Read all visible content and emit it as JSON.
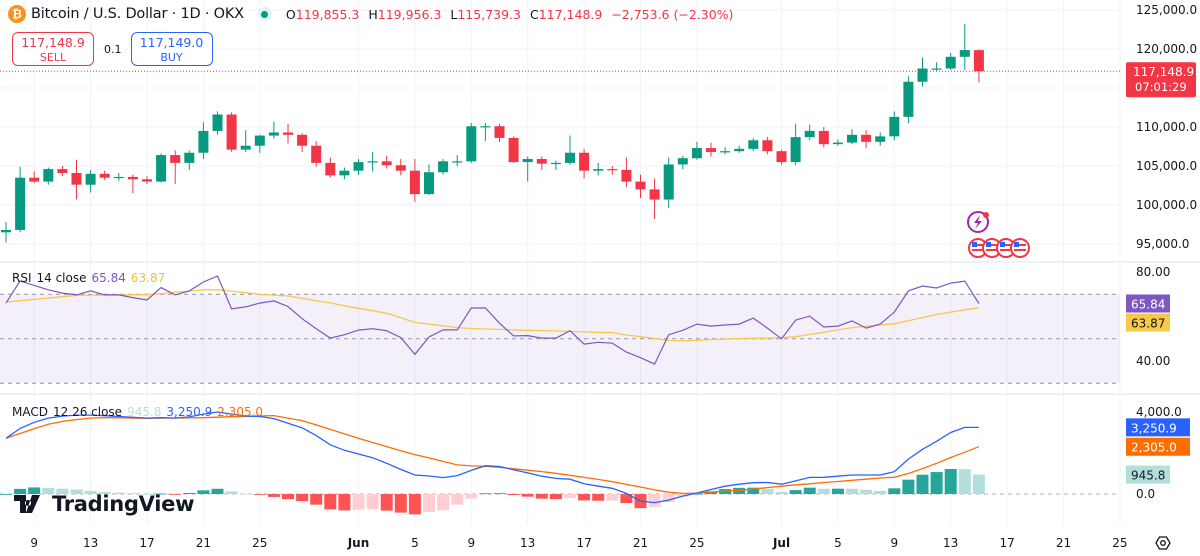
{
  "header": {
    "symbol_icon": "bitcoin-icon",
    "title": "Bitcoin / U.S. Dollar · 1D · OKX",
    "market_status": "market-open-dot",
    "ohlc": {
      "o_label": "O",
      "o": "119,855.3",
      "h_label": "H",
      "h": "119,956.3",
      "l_label": "L",
      "l": "115,739.3",
      "c_label": "C",
      "c": "117,148.9",
      "change": "−2,753.6 (−2.30%)"
    }
  },
  "trade": {
    "sell_price": "117,148.9",
    "sell_label": "SELL",
    "quantity": "0.1",
    "buy_price": "117,149.0",
    "buy_label": "BUY"
  },
  "colors": {
    "up": "#089981",
    "down": "#f23645",
    "rsi": "#7e57c2",
    "rsi_ma": "#f7c948",
    "macd": "#2962ff",
    "signal": "#ff6d00",
    "hist_up_strong": "#26a69a",
    "hist_up_weak": "#b2dfdb",
    "hist_down_strong": "#ff5252",
    "hist_down_weak": "#ffcdd2"
  },
  "price_axis": {
    "ticks": [
      "125,000.0",
      "120,000.0",
      "110,000.0",
      "105,000.0",
      "100,000.0",
      "95,000.0"
    ],
    "tick_values": [
      125000,
      120000,
      110000,
      105000,
      100000,
      95000
    ],
    "range": [
      95000,
      125000
    ],
    "last_price_label": "117,148.9",
    "countdown": "07:01:29",
    "last_price": 117148.9
  },
  "time_axis": {
    "labels": [
      {
        "t": "9",
        "bold": false
      },
      {
        "t": "13",
        "bold": false
      },
      {
        "t": "17",
        "bold": false
      },
      {
        "t": "21",
        "bold": false
      },
      {
        "t": "25",
        "bold": false
      },
      {
        "t": "Jun",
        "bold": true
      },
      {
        "t": "5",
        "bold": false
      },
      {
        "t": "9",
        "bold": false
      },
      {
        "t": "13",
        "bold": false
      },
      {
        "t": "17",
        "bold": false
      },
      {
        "t": "21",
        "bold": false
      },
      {
        "t": "25",
        "bold": false
      },
      {
        "t": "Jul",
        "bold": true
      },
      {
        "t": "5",
        "bold": false
      },
      {
        "t": "9",
        "bold": false
      },
      {
        "t": "13",
        "bold": false
      },
      {
        "t": "17",
        "bold": false
      },
      {
        "t": "21",
        "bold": false
      },
      {
        "t": "25",
        "bold": false
      }
    ],
    "label_dates": [
      "2025-05-09",
      "2025-05-13",
      "2025-05-17",
      "2025-05-21",
      "2025-05-25",
      "2025-06-01",
      "2025-06-05",
      "2025-06-09",
      "2025-06-13",
      "2025-06-17",
      "2025-06-21",
      "2025-06-25",
      "2025-07-01",
      "2025-07-05",
      "2025-07-09",
      "2025-07-13",
      "2025-07-17",
      "2025-07-21",
      "2025-07-25"
    ],
    "first_date": "2025-05-07",
    "settings_icon": "gear-icon"
  },
  "candles": [
    [
      96500,
      97800,
      95200,
      96800
    ],
    [
      96800,
      104900,
      96500,
      103500
    ],
    [
      103500,
      104300,
      102800,
      103000
    ],
    [
      103000,
      104800,
      102600,
      104600
    ],
    [
      104600,
      105000,
      103700,
      104100
    ],
    [
      104100,
      105800,
      100700,
      102600
    ],
    [
      102600,
      104500,
      101600,
      104000
    ],
    [
      104000,
      104400,
      103200,
      103500
    ],
    [
      103500,
      104100,
      103100,
      103600
    ],
    [
      103600,
      103900,
      101500,
      103300
    ],
    [
      103300,
      103700,
      102700,
      103000
    ],
    [
      103000,
      106600,
      102900,
      106400
    ],
    [
      106400,
      107000,
      102700,
      105400
    ],
    [
      105400,
      107000,
      104500,
      106700
    ],
    [
      106700,
      110600,
      105900,
      109500
    ],
    [
      109500,
      112000,
      109000,
      111600
    ],
    [
      111600,
      111900,
      106800,
      107100
    ],
    [
      107100,
      109600,
      106800,
      107600
    ],
    [
      107600,
      109000,
      106700,
      108900
    ],
    [
      108900,
      110700,
      108500,
      109300
    ],
    [
      109300,
      110400,
      107900,
      109000
    ],
    [
      109000,
      109200,
      106800,
      107600
    ],
    [
      107600,
      108200,
      104900,
      105400
    ],
    [
      105400,
      106100,
      103500,
      103800
    ],
    [
      103800,
      104800,
      103300,
      104400
    ],
    [
      104400,
      105900,
      103900,
      105500
    ],
    [
      105500,
      106800,
      104300,
      105600
    ],
    [
      105600,
      106300,
      104700,
      105100
    ],
    [
      105100,
      105900,
      103800,
      104400
    ],
    [
      104400,
      105900,
      100400,
      101400
    ],
    [
      101400,
      105200,
      101300,
      104200
    ],
    [
      104200,
      105900,
      103900,
      105600
    ],
    [
      105600,
      106400,
      105000,
      105600
    ],
    [
      105600,
      110500,
      105400,
      110100
    ],
    [
      110100,
      110500,
      108200,
      110100
    ],
    [
      110100,
      110400,
      108100,
      108600
    ],
    [
      108600,
      108800,
      105400,
      105500
    ],
    [
      105500,
      106200,
      103000,
      105900
    ],
    [
      105900,
      106200,
      104500,
      105300
    ],
    [
      105300,
      105700,
      104500,
      105400
    ],
    [
      105400,
      108900,
      105200,
      106700
    ],
    [
      106700,
      107200,
      103400,
      104400
    ],
    [
      104400,
      105400,
      103800,
      104600
    ],
    [
      104600,
      105000,
      103900,
      104500
    ],
    [
      104500,
      106100,
      102300,
      103000
    ],
    [
      103000,
      103900,
      100900,
      102000
    ],
    [
      102000,
      103400,
      98200,
      100700
    ],
    [
      100700,
      106100,
      99600,
      105200
    ],
    [
      105200,
      106300,
      104600,
      106000
    ],
    [
      106000,
      108100,
      105800,
      107300
    ],
    [
      107300,
      108000,
      106200,
      106800
    ],
    [
      106800,
      107400,
      106500,
      106900
    ],
    [
      106900,
      107600,
      106700,
      107200
    ],
    [
      107200,
      108600,
      106900,
      108300
    ],
    [
      108300,
      108700,
      106500,
      106900
    ],
    [
      106900,
      107100,
      105200,
      105500
    ],
    [
      105500,
      110400,
      105100,
      108700
    ],
    [
      108700,
      110300,
      108300,
      109500
    ],
    [
      109500,
      110000,
      107400,
      107800
    ],
    [
      107800,
      108400,
      107600,
      108000
    ],
    [
      108000,
      109700,
      107800,
      109000
    ],
    [
      109000,
      109600,
      107300,
      108100
    ],
    [
      108100,
      109300,
      107600,
      108800
    ],
    [
      108800,
      112000,
      108300,
      111300
    ],
    [
      111300,
      116500,
      110500,
      115800
    ],
    [
      115800,
      118900,
      115200,
      117500
    ],
    [
      117500,
      118300,
      117200,
      117500
    ],
    [
      117500,
      119500,
      117300,
      119000
    ],
    [
      119000,
      123200,
      117300,
      119860
    ],
    [
      119855.3,
      119956.3,
      115739.3,
      117148.9
    ]
  ],
  "rsi": {
    "legend_name": "RSI",
    "legend_params": "14 close",
    "value_label": "65.84",
    "ma_label": "63.87",
    "ticks": [
      "80.00",
      "40.00"
    ],
    "tick_values": [
      80,
      40
    ],
    "bands": [
      70,
      50,
      30
    ],
    "range": [
      25,
      85
    ],
    "values": [
      66,
      76,
      74,
      72,
      70.5,
      69.7,
      71.5,
      69.7,
      69.7,
      68.5,
      67.4,
      73,
      69.7,
      71.5,
      75.5,
      78.2,
      63.4,
      64.3,
      66,
      67,
      64.5,
      59,
      54.5,
      50.3,
      51.8,
      53.9,
      54.5,
      53.6,
      50.5,
      43,
      50.8,
      54,
      54,
      63.8,
      63.8,
      57,
      51.3,
      51.4,
      50.3,
      50.3,
      53.6,
      47.6,
      48.4,
      48,
      44,
      41.5,
      38.6,
      51.8,
      53.8,
      56.6,
      55.7,
      56.2,
      56.6,
      59.3,
      54.8,
      50,
      58.4,
      60.2,
      55.3,
      55.7,
      58,
      54.8,
      56.6,
      62,
      71.5,
      73.7,
      72.8,
      75,
      75.9,
      65.84
    ],
    "ma": [
      66.5,
      67.1,
      67.7,
      68.3,
      68.9,
      69.5,
      69.6,
      69.6,
      69.7,
      69.8,
      69.8,
      70.3,
      70.9,
      71.4,
      72,
      72,
      71.4,
      70.7,
      70,
      69.6,
      69.2,
      68.2,
      67,
      66.1,
      64.8,
      63.7,
      62.6,
      61.5,
      59.4,
      57.3,
      56.6,
      55.8,
      55,
      54.6,
      54.4,
      54.2,
      54,
      53.8,
      53.7,
      53.5,
      53.3,
      53.1,
      52.9,
      52.8,
      51.7,
      50.9,
      50.1,
      49.2,
      49.1,
      49.3,
      49.6,
      49.8,
      50.1,
      50.2,
      50.3,
      50.5,
      50.9,
      51.9,
      52.9,
      54,
      55,
      55.6,
      56.2,
      56.7,
      58.1,
      59.5,
      60.9,
      62,
      63,
      63.87
    ]
  },
  "macd": {
    "legend_name": "MACD",
    "legend_params": "12 26 close",
    "hist_label": "945.8",
    "macd_label": "3,250.9",
    "signal_label": "2,305.0",
    "ticks": [
      "4,000.0",
      "0.0"
    ],
    "tick_values": [
      4000,
      0
    ],
    "range": [
      -1600,
      4400
    ],
    "macd": [
      2716,
      3200,
      3500,
      3700,
      3800,
      3850,
      3850,
      3820,
      3780,
      3740,
      3700,
      3720,
      3700,
      3760,
      3900,
      4000,
      3900,
      3800,
      3780,
      3680,
      3450,
      3230,
      2850,
      2400,
      2130,
      1950,
      1770,
      1500,
      1200,
      927,
      880,
      800,
      900,
      1150,
      1380,
      1340,
      1180,
      1030,
      870,
      760,
      720,
      500,
      380,
      280,
      30,
      -350,
      -420,
      -300,
      -100,
      50,
      220,
      380,
      480,
      550,
      560,
      480,
      640,
      810,
      813,
      870,
      927,
      927,
      927,
      1090,
      1700,
      2180,
      2570,
      3000,
      3250,
      3250.9
    ],
    "signal": [
      2716,
      2950,
      3180,
      3400,
      3540,
      3630,
      3700,
      3725,
      3715,
      3700,
      3692,
      3700,
      3705,
      3712,
      3720,
      3745,
      3770,
      3790,
      3810,
      3823,
      3700,
      3580,
      3370,
      3150,
      2930,
      2716,
      2510,
      2310,
      2110,
      1920,
      1760,
      1590,
      1420,
      1370,
      1345,
      1300,
      1230,
      1160,
      1095,
      1010,
      910,
      810,
      710,
      602,
      470,
      340,
      200,
      90,
      30,
      40,
      90,
      140,
      180,
      240,
      310,
      380,
      450,
      500,
      560,
      610,
      670,
      720,
      780,
      813,
      1000,
      1240,
      1500,
      1780,
      2040,
      2305
    ]
  },
  "events": {
    "earnings_icon": "lightning-event-icon",
    "economic_icons": [
      "us-flag-icon",
      "us-flag-icon",
      "us-flag-icon",
      "us-flag-icon"
    ]
  },
  "branding": {
    "logo": "TradingView"
  }
}
